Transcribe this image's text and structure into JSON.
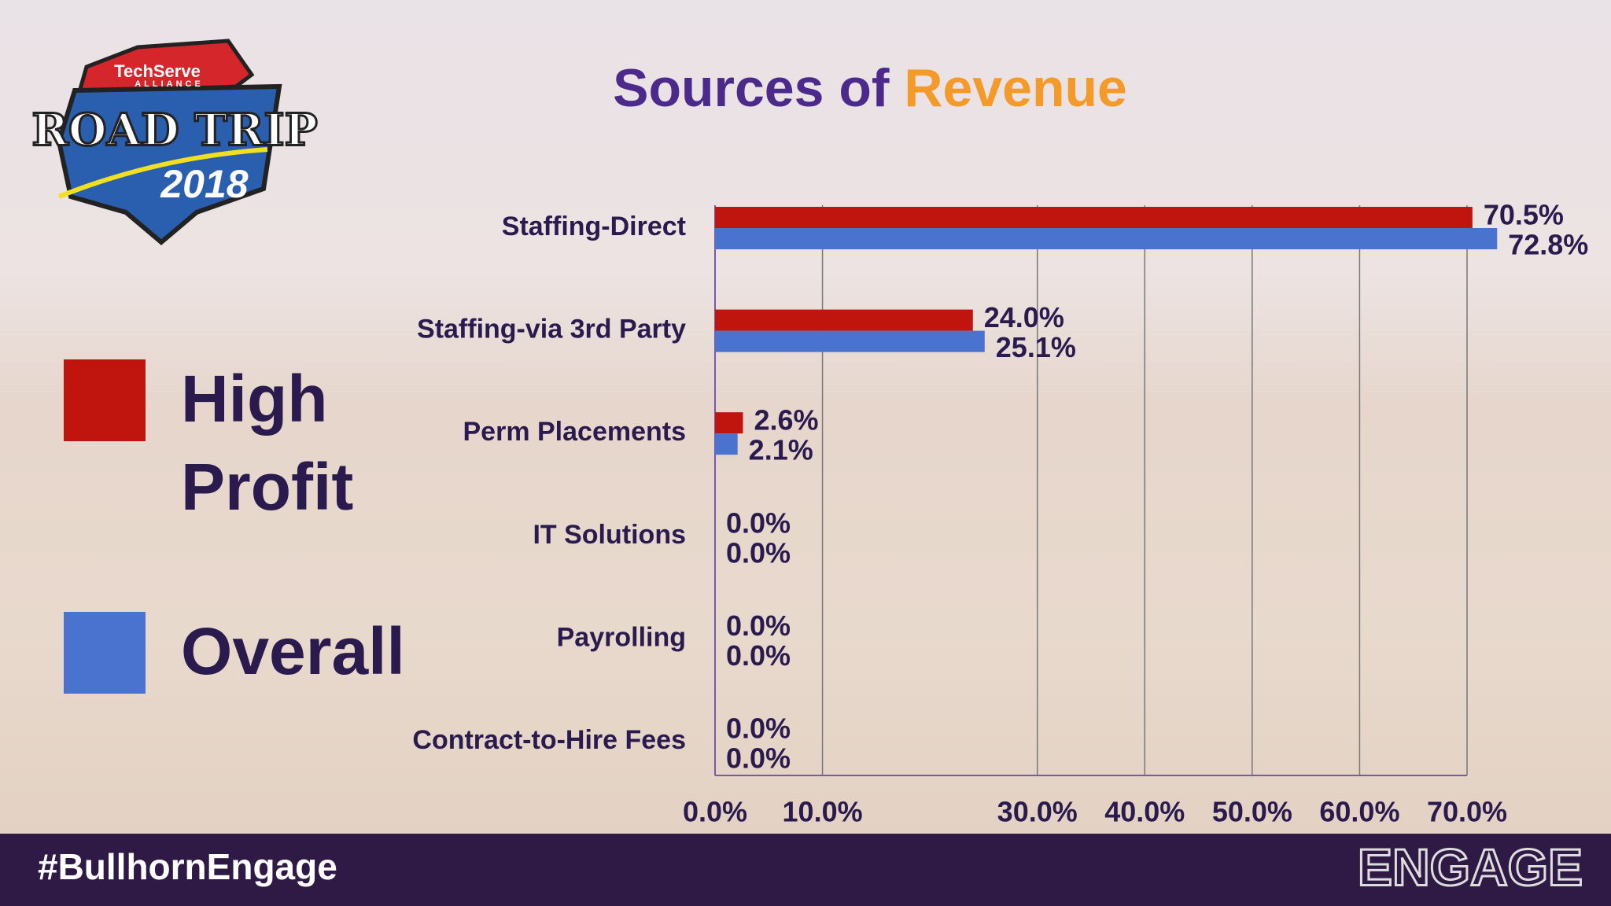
{
  "chart_data": {
    "type": "bar",
    "orientation": "horizontal",
    "title": [
      "Sources of",
      "Revenue"
    ],
    "categories": [
      "Staffing-Direct",
      "Staffing-via 3rd Party",
      "Perm Placements",
      "IT Solutions",
      "Payrolling",
      "Contract-to-Hire Fees"
    ],
    "series": [
      {
        "name": "High Profit",
        "color": "#c0140f",
        "values": [
          70.5,
          24.0,
          2.6,
          0.0,
          0.0,
          0.0
        ],
        "value_labels": [
          "70.5%",
          "24.0%",
          "2.6%",
          "0.0%",
          "0.0%",
          "0.0%"
        ]
      },
      {
        "name": "Overall",
        "color": "#4a72cf",
        "values": [
          72.8,
          25.1,
          2.1,
          0.0,
          0.0,
          0.0
        ],
        "value_labels": [
          "72.8%",
          "25.1%",
          "2.1%",
          "0.0%",
          "0.0%",
          "0.0%"
        ]
      }
    ],
    "xlim": [
      0,
      70
    ],
    "xticks": [
      {
        "value": 0,
        "label": "0.0%"
      },
      {
        "value": 10,
        "label": "10.0%"
      },
      {
        "value": 30,
        "label": "30.0%"
      },
      {
        "value": 40,
        "label": "40.0%"
      },
      {
        "value": 50,
        "label": "50.0%"
      },
      {
        "value": 60,
        "label": "60.0%"
      },
      {
        "value": 70,
        "label": "70.0%"
      }
    ],
    "grid": true
  },
  "logo": {
    "brand": "TechServe",
    "sub": "ALLIANCE",
    "name": "ROAD TRIP",
    "year": "2018"
  },
  "footer": {
    "hashtag": "#BullhornEngage",
    "brand": "ENGAGE"
  }
}
